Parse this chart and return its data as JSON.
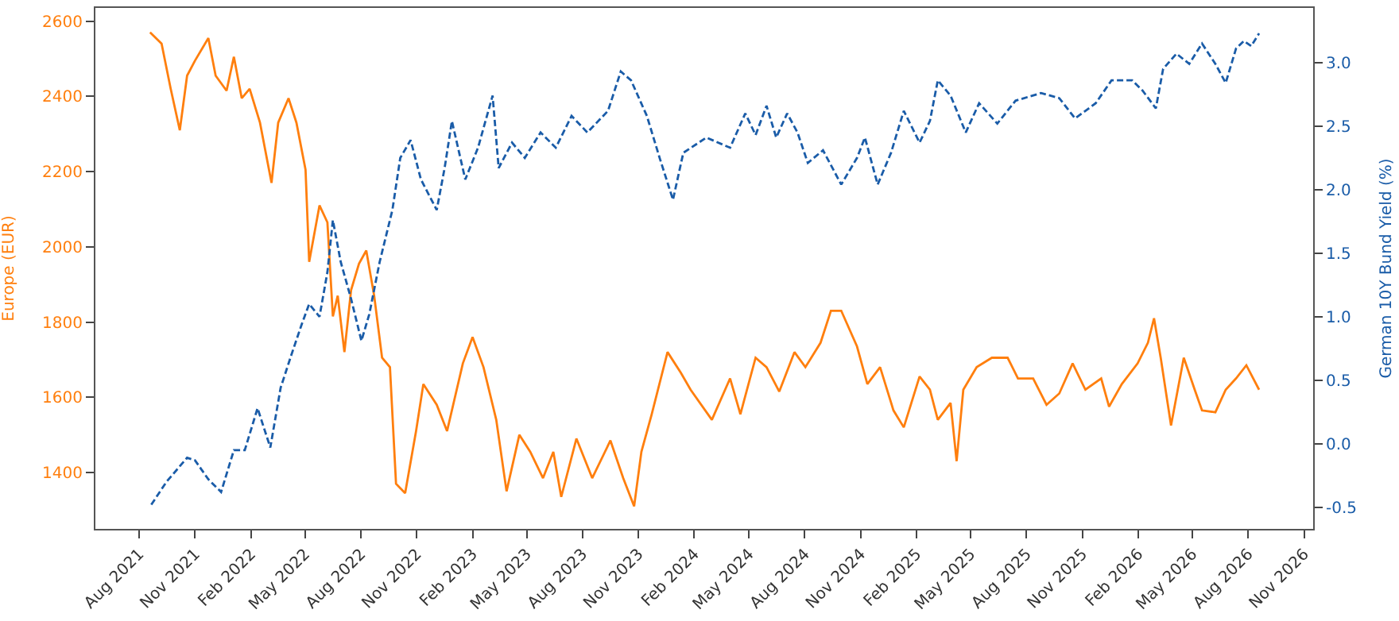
{
  "chart_data": {
    "type": "line",
    "ylabel": "Europe (EUR)",
    "y2label": "German 10Y Bund Yield (%)",
    "xlim": [
      "2021-05-21",
      "2026-11-16"
    ],
    "xticks": [
      {
        "value": "2021-08-01",
        "label": "Aug 2021"
      },
      {
        "value": "2021-11-01",
        "label": "Nov 2021"
      },
      {
        "value": "2022-02-01",
        "label": "Feb 2022"
      },
      {
        "value": "2022-05-01",
        "label": "May 2022"
      },
      {
        "value": "2022-08-01",
        "label": "Aug 2022"
      },
      {
        "value": "2022-11-01",
        "label": "Nov 2022"
      },
      {
        "value": "2023-02-01",
        "label": "Feb 2023"
      },
      {
        "value": "2023-05-01",
        "label": "May 2023"
      },
      {
        "value": "2023-08-01",
        "label": "Aug 2023"
      },
      {
        "value": "2023-11-01",
        "label": "Nov 2023"
      },
      {
        "value": "2024-02-01",
        "label": "Feb 2024"
      },
      {
        "value": "2024-05-01",
        "label": "May 2024"
      },
      {
        "value": "2024-08-01",
        "label": "Aug 2024"
      },
      {
        "value": "2024-11-01",
        "label": "Nov 2024"
      },
      {
        "value": "2025-02-01",
        "label": "Feb 2025"
      },
      {
        "value": "2025-05-01",
        "label": "May 2025"
      },
      {
        "value": "2025-08-01",
        "label": "Aug 2025"
      },
      {
        "value": "2025-11-01",
        "label": "Nov 2025"
      },
      {
        "value": "2026-02-01",
        "label": "Feb 2026"
      },
      {
        "value": "2026-05-01",
        "label": "May 2026"
      },
      {
        "value": "2026-08-01",
        "label": "Aug 2026"
      },
      {
        "value": "2026-11-01",
        "label": "Nov 2026"
      }
    ],
    "ylim": [
      1250,
      2635
    ],
    "yticks": [
      1400,
      1600,
      1800,
      2000,
      2200,
      2400,
      2600
    ],
    "y2lim": [
      -0.67,
      3.43
    ],
    "y2ticks": [
      -0.5,
      {
        "value": 0,
        "label": "0.0"
      },
      0.5,
      {
        "value": 1,
        "label": "1.0"
      },
      1.5,
      {
        "value": 2,
        "label": "2.0"
      },
      2.5,
      {
        "value": 3,
        "label": "3.0"
      }
    ],
    "series": [
      {
        "color": "#ff7f0e",
        "line_style": "solid",
        "x": [
          "2021-08-19",
          "2021-09-07",
          "2021-09-22",
          "2021-10-07",
          "2021-10-19",
          "2021-11-01",
          "2021-11-23",
          "2021-12-05",
          "2021-12-23",
          "2022-01-04",
          "2022-01-17",
          "2022-01-30",
          "2022-02-16",
          "2022-03-07",
          "2022-03-18",
          "2022-04-04",
          "2022-04-17",
          "2022-05-02",
          "2022-05-08",
          "2022-05-25",
          "2022-06-07",
          "2022-06-16",
          "2022-06-24",
          "2022-07-05",
          "2022-07-16",
          "2022-07-29",
          "2022-08-10",
          "2022-08-23",
          "2022-09-05",
          "2022-09-18",
          "2022-09-28",
          "2022-10-13",
          "2022-10-31",
          "2022-11-12",
          "2022-12-04",
          "2022-12-21",
          "2023-01-16",
          "2023-02-01",
          "2023-02-19",
          "2023-03-12",
          "2023-03-29",
          "2023-04-19",
          "2023-05-07",
          "2023-05-28",
          "2023-06-14",
          "2023-06-27",
          "2023-07-22",
          "2023-08-17",
          "2023-09-16",
          "2023-10-07",
          "2023-10-25",
          "2023-11-06",
          "2023-11-23",
          "2023-12-19",
          "2024-01-10",
          "2024-01-26",
          "2024-03-01",
          "2024-03-31",
          "2024-04-17",
          "2024-05-12",
          "2024-05-30",
          "2024-06-20",
          "2024-07-15",
          "2024-08-02",
          "2024-08-27",
          "2024-09-13",
          "2024-09-30",
          "2024-10-26",
          "2024-11-12",
          "2024-12-03",
          "2024-12-25",
          "2025-01-11",
          "2025-02-06",
          "2025-02-23",
          "2025-03-08",
          "2025-03-29",
          "2025-04-08",
          "2025-04-19",
          "2025-05-11",
          "2025-06-05",
          "2025-07-01",
          "2025-07-18",
          "2025-08-12",
          "2025-09-03",
          "2025-09-24",
          "2025-10-16",
          "2025-11-06",
          "2025-12-02",
          "2025-12-15",
          "2026-01-05",
          "2026-01-31",
          "2026-02-17",
          "2026-02-27",
          "2026-03-10",
          "2026-03-27",
          "2026-04-17",
          "2026-05-05",
          "2026-05-17",
          "2026-06-08",
          "2026-06-25",
          "2026-07-12",
          "2026-07-29",
          "2026-08-19"
        ],
        "values": [
          2570,
          2540,
          2420,
          2310,
          2455,
          2495,
          2555,
          2455,
          2415,
          2505,
          2395,
          2420,
          2330,
          2170,
          2330,
          2395,
          2330,
          2205,
          1960,
          2110,
          2065,
          1815,
          1870,
          1720,
          1885,
          1955,
          1990,
          1870,
          1705,
          1680,
          1370,
          1345,
          1510,
          1635,
          1580,
          1510,
          1690,
          1760,
          1680,
          1540,
          1350,
          1500,
          1455,
          1385,
          1455,
          1335,
          1490,
          1385,
          1485,
          1385,
          1310,
          1455,
          1555,
          1720,
          1665,
          1620,
          1540,
          1650,
          1555,
          1705,
          1680,
          1615,
          1720,
          1680,
          1745,
          1830,
          1830,
          1735,
          1635,
          1680,
          1565,
          1520,
          1655,
          1620,
          1540,
          1585,
          1430,
          1620,
          1680,
          1705,
          1705,
          1650,
          1650,
          1580,
          1610,
          1690,
          1620,
          1650,
          1575,
          1635,
          1690,
          1745,
          1810,
          1705,
          1525,
          1705,
          1620,
          1565,
          1560,
          1620,
          1650,
          1685,
          1620
        ]
      },
      {
        "color": "#1a5ca8",
        "line_style": "dashed",
        "axis": "y2",
        "x": [
          "2021-08-21",
          "2021-09-15",
          "2021-10-19",
          "2021-11-01",
          "2021-11-23",
          "2021-12-14",
          "2022-01-04",
          "2022-01-22",
          "2022-02-12",
          "2022-03-05",
          "2022-03-22",
          "2022-04-08",
          "2022-04-25",
          "2022-05-08",
          "2022-05-25",
          "2022-06-07",
          "2022-06-16",
          "2022-06-29",
          "2022-07-16",
          "2022-08-02",
          "2022-08-15",
          "2022-09-01",
          "2022-09-22",
          "2022-10-05",
          "2022-10-22",
          "2022-11-08",
          "2022-12-04",
          "2022-12-17",
          "2022-12-29",
          "2023-01-20",
          "2023-02-10",
          "2023-03-06",
          "2023-03-16",
          "2023-04-07",
          "2023-04-28",
          "2023-05-24",
          "2023-06-18",
          "2023-07-14",
          "2023-08-09",
          "2023-09-12",
          "2023-10-03",
          "2023-10-20",
          "2023-11-15",
          "2023-12-06",
          "2023-12-28",
          "2024-01-14",
          "2024-02-21",
          "2024-03-31",
          "2024-04-25",
          "2024-05-12",
          "2024-05-30",
          "2024-06-15",
          "2024-07-03",
          "2024-07-20",
          "2024-08-06",
          "2024-08-31",
          "2024-09-30",
          "2024-10-26",
          "2024-11-08",
          "2024-11-29",
          "2024-12-21",
          "2025-01-11",
          "2025-02-06",
          "2025-02-23",
          "2025-03-08",
          "2025-03-29",
          "2025-04-23",
          "2025-05-15",
          "2025-06-14",
          "2025-07-14",
          "2025-08-25",
          "2025-09-24",
          "2025-10-20",
          "2025-11-23",
          "2025-12-19",
          "2026-01-22",
          "2026-02-08",
          "2026-03-02",
          "2026-03-14",
          "2026-04-05",
          "2026-04-26",
          "2026-05-17",
          "2026-06-08",
          "2026-06-25",
          "2026-07-12",
          "2026-07-25",
          "2026-08-06",
          "2026-08-19"
        ],
        "values": [
          -0.48,
          -0.3,
          -0.11,
          -0.13,
          -0.28,
          -0.38,
          -0.05,
          -0.05,
          0.28,
          -0.03,
          0.44,
          0.69,
          0.93,
          1.1,
          1.0,
          1.35,
          1.76,
          1.43,
          1.14,
          0.81,
          1.02,
          1.43,
          1.84,
          2.25,
          2.39,
          2.08,
          1.84,
          2.17,
          2.54,
          2.08,
          2.33,
          2.74,
          2.17,
          2.37,
          2.25,
          2.45,
          2.33,
          2.58,
          2.45,
          2.62,
          2.93,
          2.86,
          2.58,
          2.25,
          1.92,
          2.29,
          2.41,
          2.33,
          2.6,
          2.43,
          2.66,
          2.41,
          2.6,
          2.45,
          2.21,
          2.31,
          2.04,
          2.25,
          2.41,
          2.04,
          2.29,
          2.62,
          2.37,
          2.54,
          2.86,
          2.74,
          2.45,
          2.68,
          2.52,
          2.7,
          2.76,
          2.72,
          2.56,
          2.68,
          2.86,
          2.86,
          2.78,
          2.64,
          2.95,
          3.07,
          2.99,
          3.15,
          2.99,
          2.84,
          3.11,
          3.17,
          3.13,
          3.23
        ]
      }
    ]
  }
}
